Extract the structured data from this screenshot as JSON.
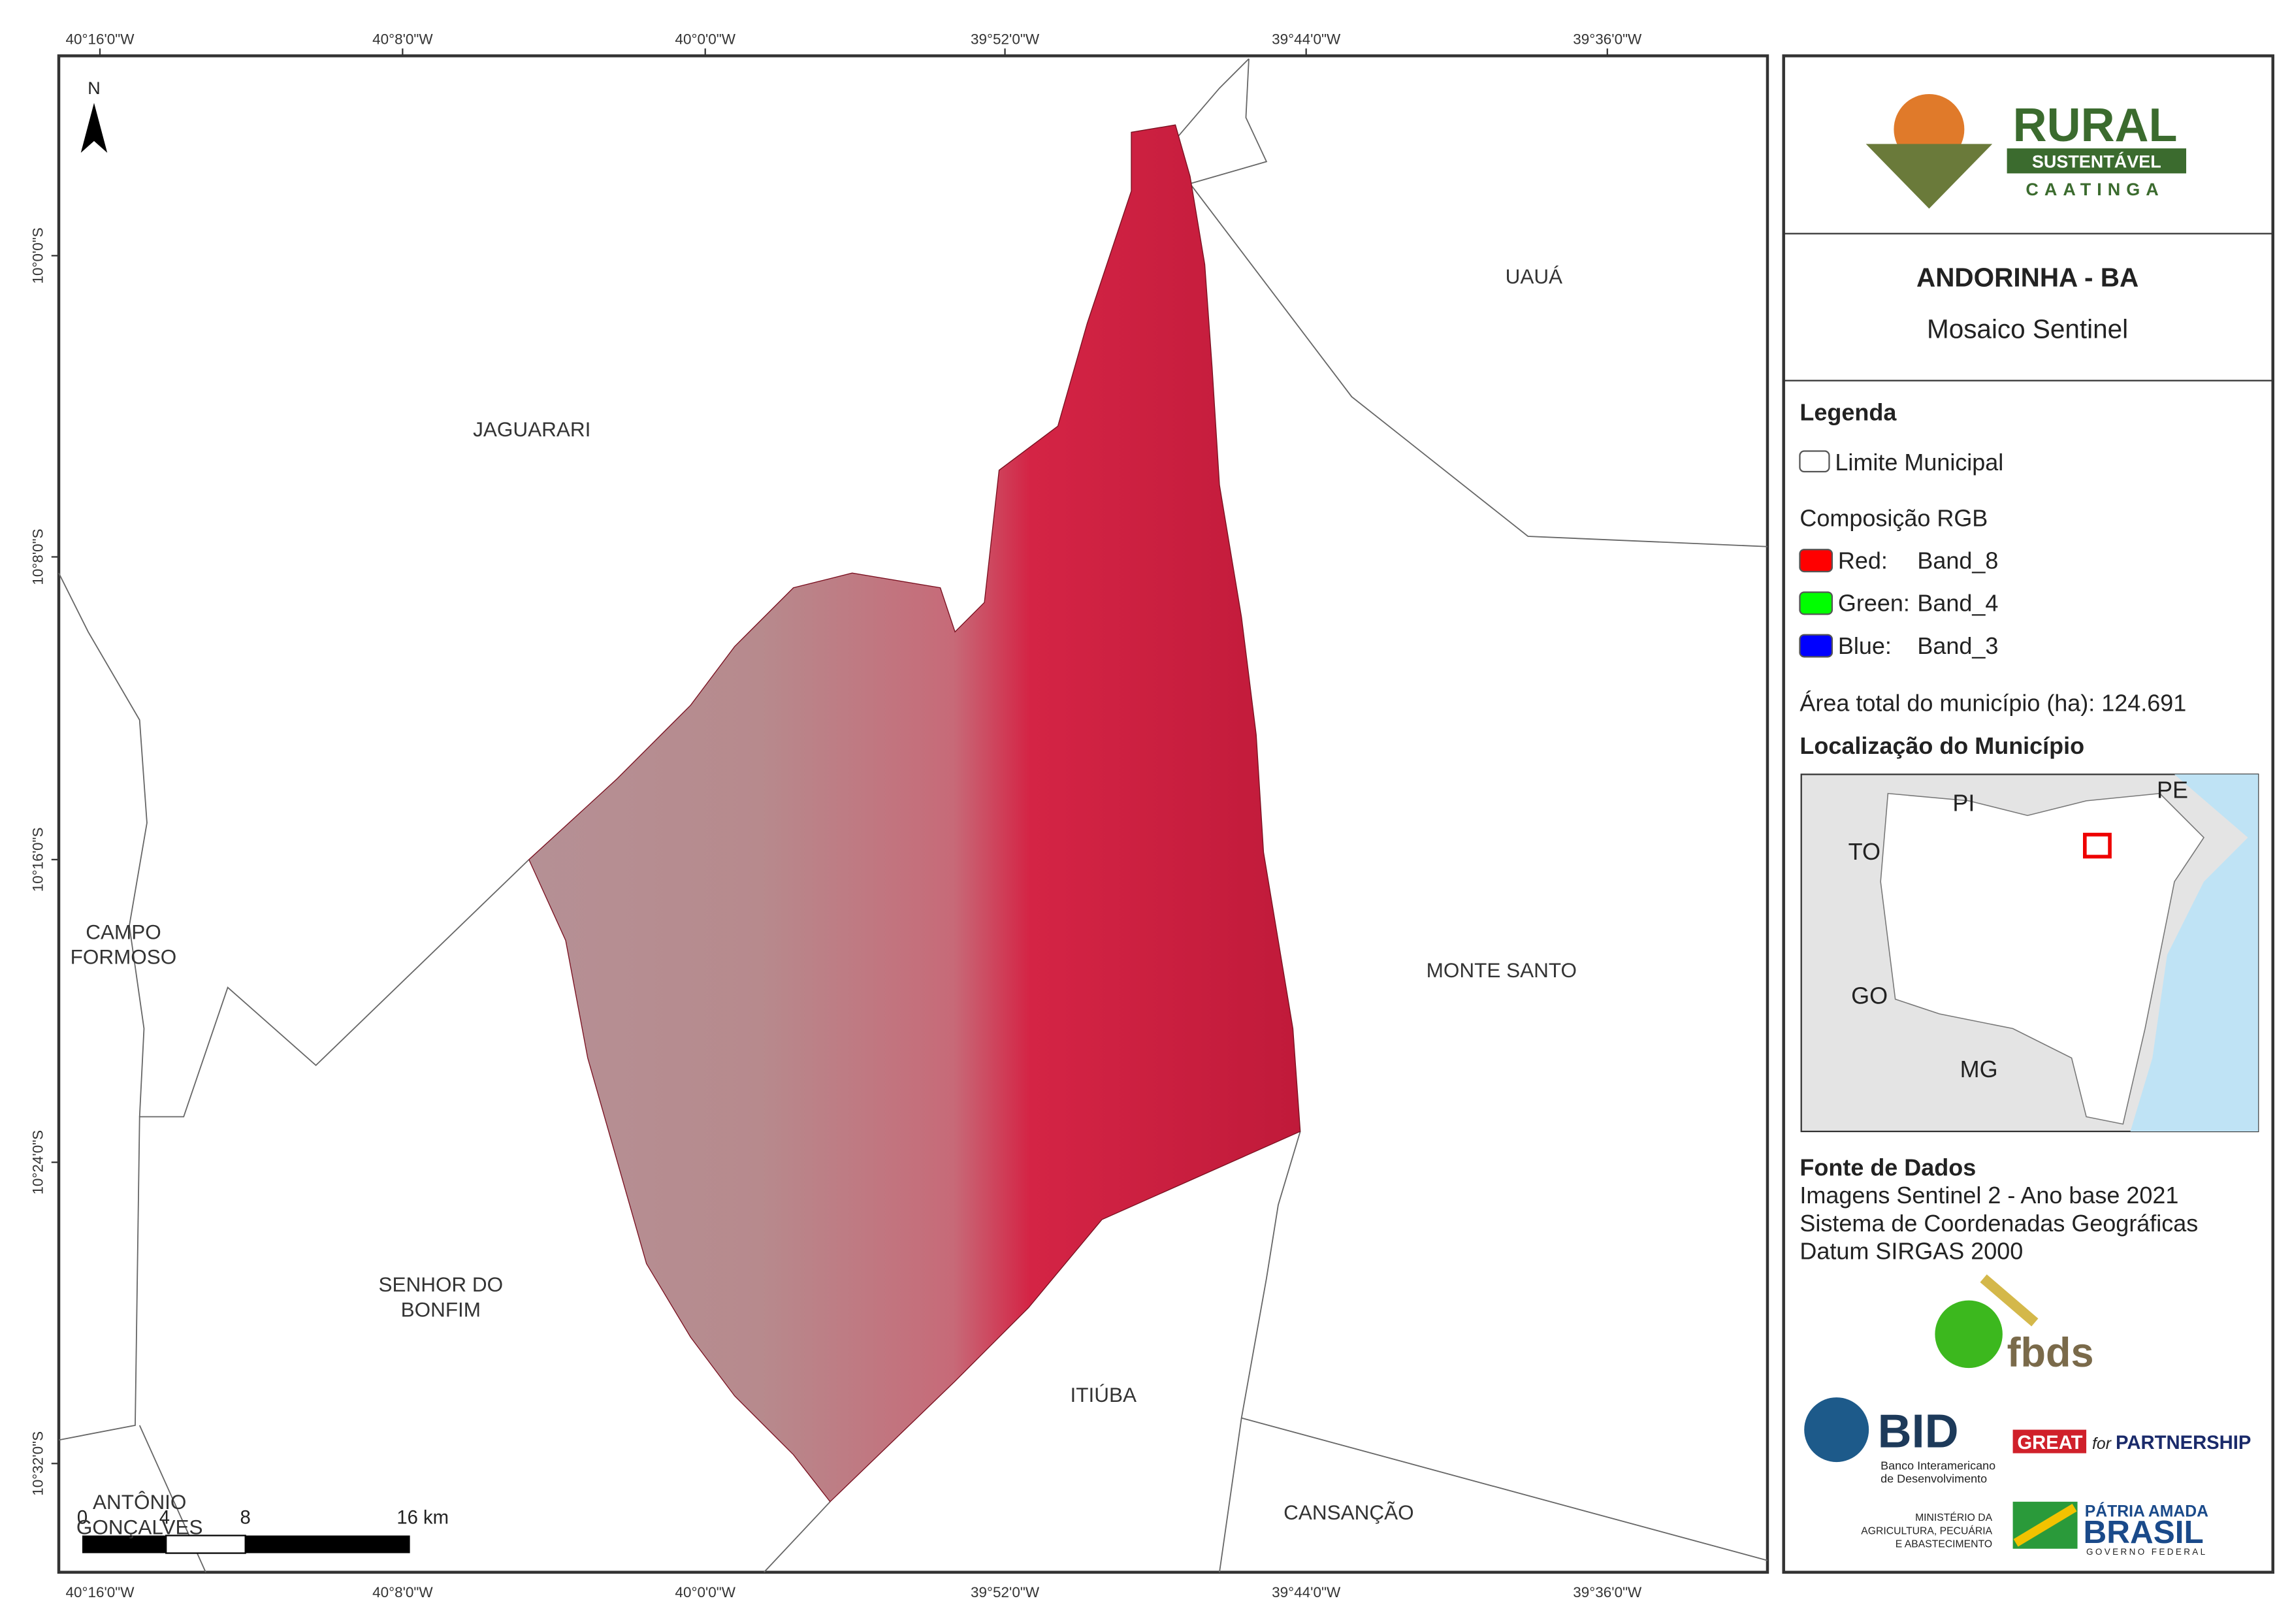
{
  "map": {
    "north": "N",
    "lon_labels": [
      "40°16'0\"W",
      "40°8'0\"W",
      "40°0'0\"W",
      "39°52'0\"W",
      "39°44'0\"W",
      "39°36'0\"W"
    ],
    "lat_labels": [
      "10°0'0\"S",
      "10°8'0\"S",
      "10°16'0\"S",
      "10°24'0\"S",
      "10°32'0\"S"
    ],
    "places": [
      {
        "lines": [
          "UAUÁ"
        ]
      },
      {
        "lines": [
          "JAGUARARI"
        ]
      },
      {
        "lines": [
          "CAMPO",
          "FORMOSO"
        ]
      },
      {
        "lines": [
          "MONTE SANTO"
        ]
      },
      {
        "lines": [
          "SENHOR DO",
          "BONFIM"
        ]
      },
      {
        "lines": [
          "ITIÚBA"
        ]
      },
      {
        "lines": [
          "CANSANÇÃO"
        ]
      },
      {
        "lines": [
          "ANTÔNIO",
          "GONÇALVES"
        ]
      }
    ],
    "scale_bar": [
      "0",
      "4",
      "8",
      "16 km"
    ]
  },
  "panel": {
    "logo": {
      "word": "RURAL",
      "ribbon": "SUSTENTÁVEL",
      "sub": "CAATINGA"
    },
    "title": "ANDORINHA - BA",
    "subtitle": "Mosaico Sentinel",
    "legend": {
      "title": "Legenda",
      "boundary": "Limite Municipal",
      "rgb_title": "Composição RGB",
      "bands": [
        {
          "channel": "Red:",
          "band": "Band_8",
          "color": "#ff0000"
        },
        {
          "channel": "Green:",
          "band": "Band_4",
          "color": "#00ff00"
        },
        {
          "channel": "Blue:",
          "band": "Band_3",
          "color": "#0000ff"
        }
      ]
    },
    "area": "Área total do município (ha): 124.691",
    "location": {
      "title": "Localização do Município",
      "states": [
        "PI",
        "PE",
        "TO",
        "GO",
        "MG"
      ]
    },
    "sources": {
      "title": "Fonte de Dados",
      "lines": [
        "Imagens Sentinel 2 - Ano base 2021",
        "Sistema de Coordenadas Geográficas",
        "Datum SIRGAS 2000"
      ]
    },
    "partners": {
      "fbds": "fbds",
      "bid": "BID",
      "bid_lines": [
        "Banco Interamericano",
        "de Desenvolvimento"
      ],
      "great": "GREAT",
      "for": "for",
      "partnership": "PARTNERSHIP",
      "ministry": [
        "MINISTÉRIO DA",
        "AGRICULTURA, PECUÁRIA",
        "E ABASTECIMENTO"
      ],
      "patria": "PÁTRIA AMADA",
      "brasil": "BRASIL",
      "governo": "GOVERNO FEDERAL"
    }
  }
}
